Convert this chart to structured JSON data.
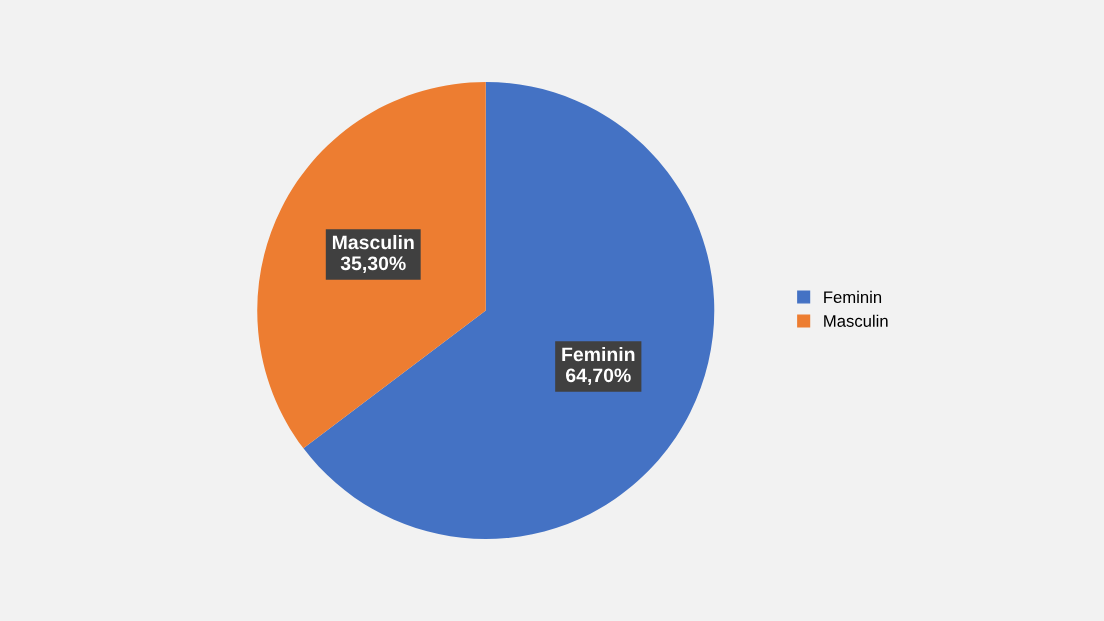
{
  "chart_data": {
    "type": "pie",
    "categories": [
      "Feminin",
      "Masculin"
    ],
    "values": [
      64.7,
      35.3
    ],
    "colors": [
      "#4472c4",
      "#ed7d31"
    ],
    "value_labels": [
      "64,70%",
      "35,30%"
    ],
    "legend": "right"
  }
}
